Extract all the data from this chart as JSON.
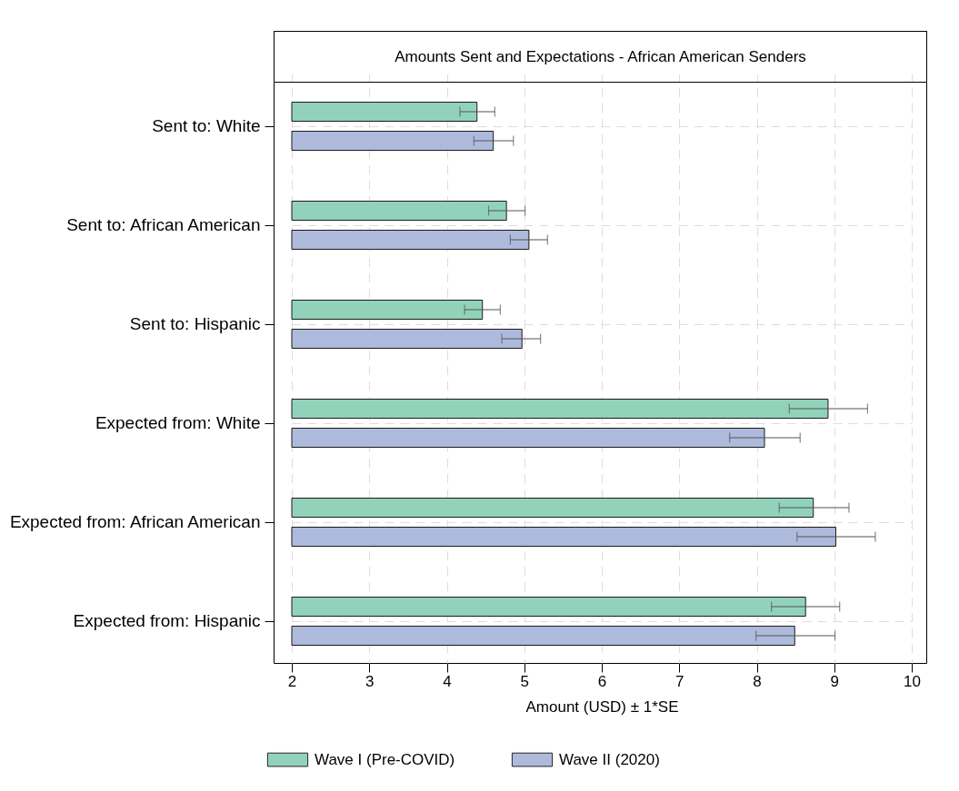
{
  "chart_data": {
    "type": "bar",
    "orientation": "horizontal",
    "title": "Amounts Sent and Expectations - African American Senders",
    "xlabel": "Amount (USD) ± 1*SE",
    "categories": [
      "Sent to: White",
      "Sent to: African American",
      "Sent to: Hispanic",
      "Expected from: White",
      "Expected from: African American",
      "Expected from: Hispanic"
    ],
    "series": [
      {
        "name": "Wave I (Pre-COVID)",
        "color": "#92d2bb",
        "values": [
          4.39,
          4.77,
          4.46,
          8.92,
          8.73,
          8.63
        ],
        "errors": [
          [
            4.17,
            4.62
          ],
          [
            4.54,
            5.01
          ],
          [
            4.23,
            4.69
          ],
          [
            8.42,
            9.43
          ],
          [
            8.29,
            9.19
          ],
          [
            8.19,
            9.07
          ]
        ]
      },
      {
        "name": "Wave II (2020)",
        "color": "#adbadc",
        "values": [
          4.6,
          5.06,
          4.97,
          8.1,
          9.02,
          8.49
        ],
        "errors": [
          [
            4.35,
            4.86
          ],
          [
            4.82,
            5.3
          ],
          [
            4.71,
            5.21
          ],
          [
            7.65,
            8.56
          ],
          [
            8.52,
            9.53
          ],
          [
            7.99,
            9.01
          ]
        ]
      }
    ],
    "xlim": [
      2,
      10
    ],
    "xticks": [
      2,
      3,
      4,
      5,
      6,
      7,
      8,
      9,
      10
    ],
    "grid": true,
    "legend": "bottom"
  }
}
